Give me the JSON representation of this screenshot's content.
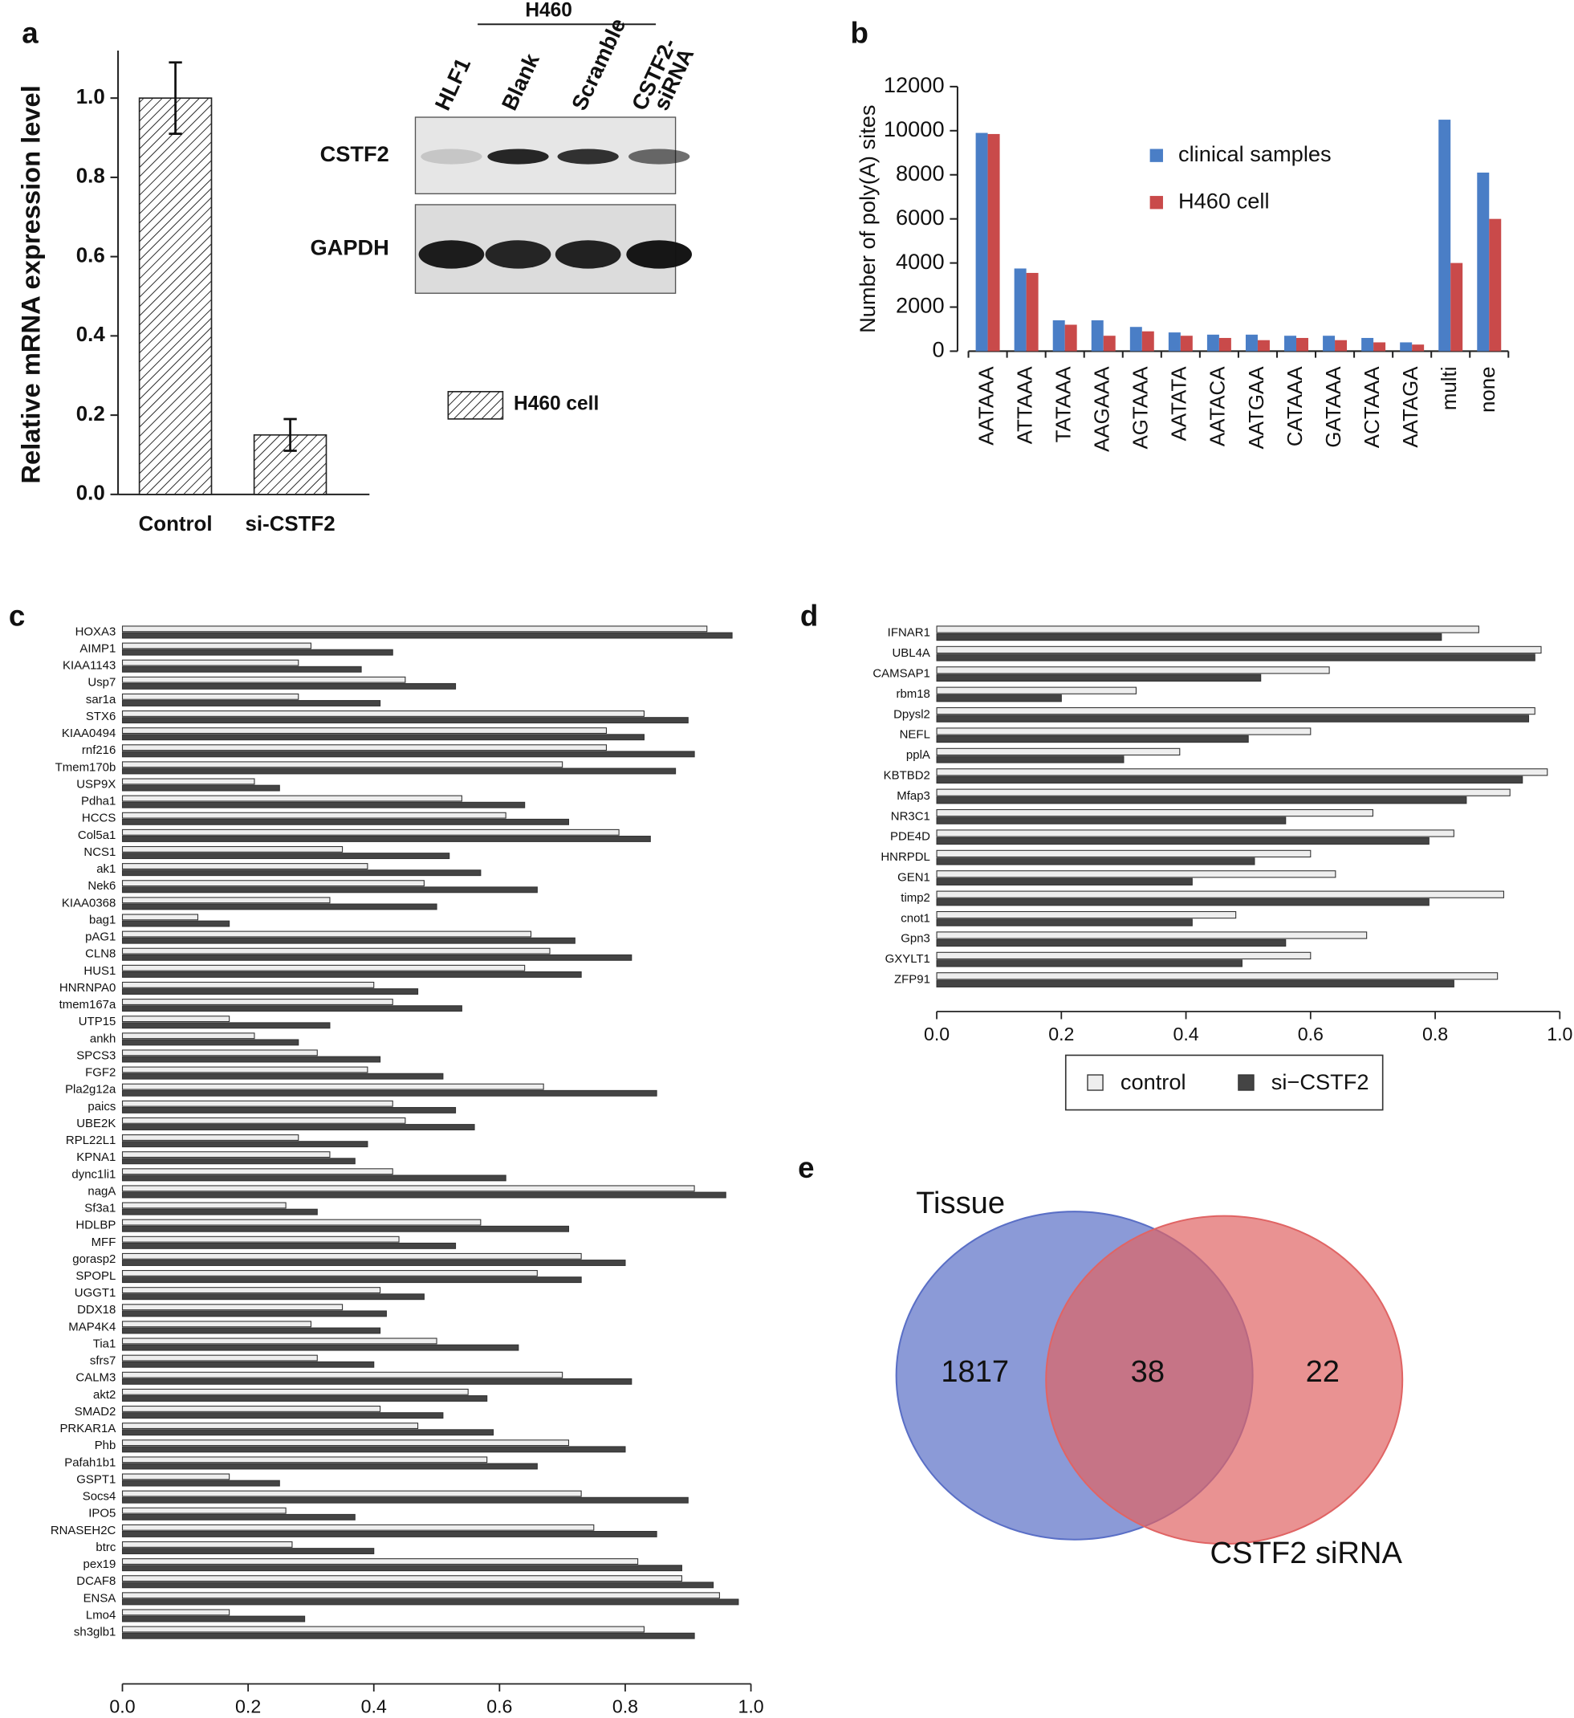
{
  "chart_data": [
    {
      "panel": "a",
      "type": "bar",
      "ylabel": "Relative mRNA  expression level",
      "categories": [
        "Control",
        "si-CSTF2"
      ],
      "series": [
        {
          "name": "H460 cell",
          "color": "#ffffff",
          "values": [
            1.0,
            0.15
          ],
          "errors": [
            0.09,
            0.04
          ]
        }
      ],
      "ylim": [
        0,
        1.12
      ],
      "yticks": [
        {
          "value": 0,
          "label": "0.0"
        },
        0.2,
        0.4,
        0.6,
        0.8,
        {
          "value": 1,
          "label": "1.0"
        }
      ],
      "hatch": true,
      "blot": {
        "group_label": "H460",
        "lanes": [
          [
            "HLF1"
          ],
          [
            "Blank"
          ],
          [
            "Scramble"
          ],
          [
            "CSTF2-",
            "siRNA"
          ]
        ],
        "rows": [
          "CSTF2",
          "GAPDH"
        ]
      }
    },
    {
      "panel": "b",
      "type": "bar",
      "ylabel": "Number of poly(A) sites",
      "categories": [
        "AATAAA",
        "ATTAAA",
        "TATAAA",
        "AAGAAA",
        "AGTAAA",
        "AATATA",
        "AATACA",
        "AATGAA",
        "CATAAA",
        "GATAAA",
        "ACTAAA",
        "AATAGA",
        "multi",
        "none"
      ],
      "series": [
        {
          "name": "clinical samples",
          "color": "#4a7ec6",
          "values": [
            9900,
            3750,
            1400,
            1400,
            1100,
            850,
            750,
            750,
            700,
            700,
            600,
            400,
            10500,
            8100
          ]
        },
        {
          "name": "H460 cell",
          "color": "#c94a4a",
          "values": [
            9850,
            3550,
            1200,
            700,
            900,
            700,
            600,
            500,
            600,
            500,
            400,
            300,
            4000,
            6000
          ]
        }
      ],
      "ylim": [
        0,
        12000
      ],
      "yticks": [
        0,
        2000,
        4000,
        6000,
        8000,
        10000,
        12000
      ],
      "legend": "upper right"
    },
    {
      "panel": "c",
      "type": "barh",
      "categories": [
        "HOXA3",
        "AIMP1",
        "KIAA1143",
        "Usp7",
        "sar1a",
        "STX6",
        "KIAA0494",
        "rnf216",
        "Tmem170b",
        "USP9X",
        "Pdha1",
        "HCCS",
        "Col5a1",
        "NCS1",
        "ak1",
        "Nek6",
        "KIAA0368",
        "bag1",
        "pAG1",
        "CLN8",
        "HUS1",
        "HNRNPA0",
        "tmem167a",
        "UTP15",
        "ankh",
        "SPCS3",
        "FGF2",
        "Pla2g12a",
        "paics",
        "UBE2K",
        "RPL22L1",
        "KPNA1",
        "dync1li1",
        "nagA",
        "Sf3a1",
        "HDLBP",
        "MFF",
        "gorasp2",
        "SPOPL",
        "UGGT1",
        "DDX18",
        "MAP4K4",
        "Tia1",
        "sfrs7",
        "CALM3",
        "akt2",
        "SMAD2",
        "PRKAR1A",
        "Phb",
        "Pafah1b1",
        "GSPT1",
        "Socs4",
        "IPO5",
        "RNASEH2C",
        "btrc",
        "pex19",
        "DCAF8",
        "ENSA",
        "Lmo4",
        "sh3glb1"
      ],
      "series": [
        {
          "color": "#eeeeee",
          "values": [
            0.93,
            0.3,
            0.28,
            0.45,
            0.28,
            0.83,
            0.77,
            0.77,
            0.7,
            0.21,
            0.54,
            0.61,
            0.79,
            0.35,
            0.39,
            0.48,
            0.33,
            0.12,
            0.65,
            0.68,
            0.64,
            0.4,
            0.43,
            0.17,
            0.21,
            0.31,
            0.39,
            0.67,
            0.43,
            0.45,
            0.28,
            0.33,
            0.43,
            0.91,
            0.26,
            0.57,
            0.44,
            0.73,
            0.66,
            0.41,
            0.35,
            0.3,
            0.5,
            0.31,
            0.7,
            0.55,
            0.41,
            0.47,
            0.71,
            0.58,
            0.17,
            0.73,
            0.26,
            0.75,
            0.27,
            0.82,
            0.89,
            0.95,
            0.17,
            0.83
          ]
        },
        {
          "color": "#444444",
          "values": [
            0.97,
            0.43,
            0.38,
            0.53,
            0.41,
            0.9,
            0.83,
            0.91,
            0.88,
            0.25,
            0.64,
            0.71,
            0.84,
            0.52,
            0.57,
            0.66,
            0.5,
            0.17,
            0.72,
            0.81,
            0.73,
            0.47,
            0.54,
            0.33,
            0.28,
            0.41,
            0.51,
            0.85,
            0.53,
            0.56,
            0.39,
            0.37,
            0.61,
            0.96,
            0.31,
            0.71,
            0.53,
            0.8,
            0.73,
            0.48,
            0.42,
            0.41,
            0.63,
            0.4,
            0.81,
            0.58,
            0.51,
            0.59,
            0.8,
            0.66,
            0.25,
            0.9,
            0.37,
            0.85,
            0.4,
            0.89,
            0.94,
            0.98,
            0.29,
            0.91
          ]
        }
      ],
      "xlim": [
        0,
        1
      ],
      "xticks": [
        {
          "value": 0,
          "label": "0.0"
        },
        0.2,
        0.4,
        0.6,
        0.8,
        {
          "value": 1,
          "label": "1.0"
        }
      ]
    },
    {
      "panel": "d",
      "type": "barh",
      "categories": [
        "IFNAR1",
        "UBL4A",
        "CAMSAP1",
        "rbm18",
        "Dpysl2",
        "NEFL",
        "pplA",
        "KBTBD2",
        "Mfap3",
        "NR3C1",
        "PDE4D",
        "HNRPDL",
        "GEN1",
        "timp2",
        "cnot1",
        "Gpn3",
        "GXYLT1",
        "ZFP91"
      ],
      "series": [
        {
          "name": "control",
          "color": "#eeeeee",
          "values": [
            0.87,
            0.97,
            0.63,
            0.32,
            0.96,
            0.6,
            0.39,
            0.98,
            0.92,
            0.7,
            0.83,
            0.6,
            0.64,
            0.91,
            0.48,
            0.69,
            0.6,
            0.9
          ]
        },
        {
          "name": "si−CSTF2",
          "color": "#444444",
          "values": [
            0.81,
            0.96,
            0.52,
            0.2,
            0.95,
            0.5,
            0.3,
            0.94,
            0.85,
            0.56,
            0.79,
            0.51,
            0.41,
            0.79,
            0.41,
            0.56,
            0.49,
            0.83
          ]
        }
      ],
      "xlim": [
        0,
        1
      ],
      "xticks": [
        {
          "value": 0,
          "label": "0.0"
        },
        0.2,
        0.4,
        0.6,
        0.8,
        {
          "value": 1,
          "label": "1.0"
        }
      ],
      "legend": "bottom"
    },
    {
      "panel": "e",
      "type": "venn",
      "sets": [
        {
          "name": "Tissue",
          "color": "#5a6fc6"
        },
        {
          "name": "CSTF2 siRNA",
          "color": "#e06464"
        }
      ],
      "values": [
        1817,
        38,
        22
      ]
    }
  ]
}
